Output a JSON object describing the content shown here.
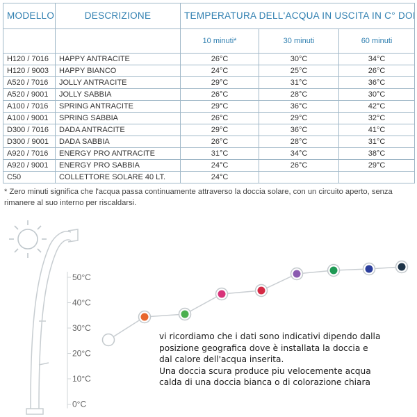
{
  "table": {
    "headers": {
      "model": "MODELLO",
      "description": "DESCRIZIONE",
      "temperature": "TEMPERATURA DELL'ACQUA IN USCITA IN C° DOPO"
    },
    "time_columns": [
      "10 minuti*",
      "30 minuti",
      "60 minuti"
    ],
    "rows": [
      {
        "model": "H120 / 7016",
        "description": "HAPPY ANTRACITE",
        "t10": "26°C",
        "t30": "30°C",
        "t60": "34°C"
      },
      {
        "model": "H120 / 9003",
        "description": "HAPPY BIANCO",
        "t10": "24°C",
        "t30": "25°C",
        "t60": "26°C"
      },
      {
        "model": "A520 / 7016",
        "description": "JOLLY ANTRACITE",
        "t10": "29°C",
        "t30": "31°C",
        "t60": "36°C"
      },
      {
        "model": "A520 / 9001",
        "description": "JOLLY SABBIA",
        "t10": "26°C",
        "t30": "28°C",
        "t60": "30°C"
      },
      {
        "model": "A100 / 7016",
        "description": "SPRING ANTRACITE",
        "t10": "29°C",
        "t30": "36°C",
        "t60": "42°C"
      },
      {
        "model": "A100 / 9001",
        "description": "SPRING SABBIA",
        "t10": "26°C",
        "t30": "29°C",
        "t60": "32°C"
      },
      {
        "model": "D300 / 7016",
        "description": "DADA ANTRACITE",
        "t10": "29°C",
        "t30": "36°C",
        "t60": "41°C"
      },
      {
        "model": "D300 / 9001",
        "description": "DADA SABBIA",
        "t10": "26°C",
        "t30": "28°C",
        "t60": "31°C"
      },
      {
        "model": "A920 / 7016",
        "description": "ENERGY PRO ANTRACITE",
        "t10": "31°C",
        "t30": "34°C",
        "t60": "38°C"
      },
      {
        "model": "A920 / 9001",
        "description": "ENERGY PRO SABBIA",
        "t10": "24°C",
        "t30": "26°C",
        "t60": "29°C"
      },
      {
        "model": "C50",
        "description": "COLLETTORE SOLARE 40 LT.",
        "t10": "24°C",
        "t30": "",
        "t60": ""
      }
    ]
  },
  "footnote": {
    "line1": "* Zero minuti significa che l'acqua passa continuamente attraverso la doccia solare, con un circuito aperto, senza",
    "line2": "rimanere al suo interno per riscaldarsi."
  },
  "scale": {
    "ticks": [
      "50°C",
      "40°C",
      "30°C",
      "20°C",
      "10°C",
      "0°C"
    ]
  },
  "dots": [
    {
      "color": "#ffffff"
    },
    {
      "color": "#e8662c"
    },
    {
      "color": "#4bb04f"
    },
    {
      "color": "#d8337a"
    },
    {
      "color": "#d42a45"
    },
    {
      "color": "#8b5bb0"
    },
    {
      "color": "#1f9a55"
    },
    {
      "color": "#2b3e9c"
    },
    {
      "color": "#1e3448"
    }
  ],
  "remarks": {
    "line1": "vi ricordiamo che i dati sono indicativi dipendo dalla",
    "line2": "posizione geografica dove è installata la doccia e",
    "line3": "dal calore dell'acqua inserita.",
    "line4": "Una doccia scura produce piu velocemente acqua",
    "line5": "calda di una doccia bianca o di colorazione chiara"
  }
}
